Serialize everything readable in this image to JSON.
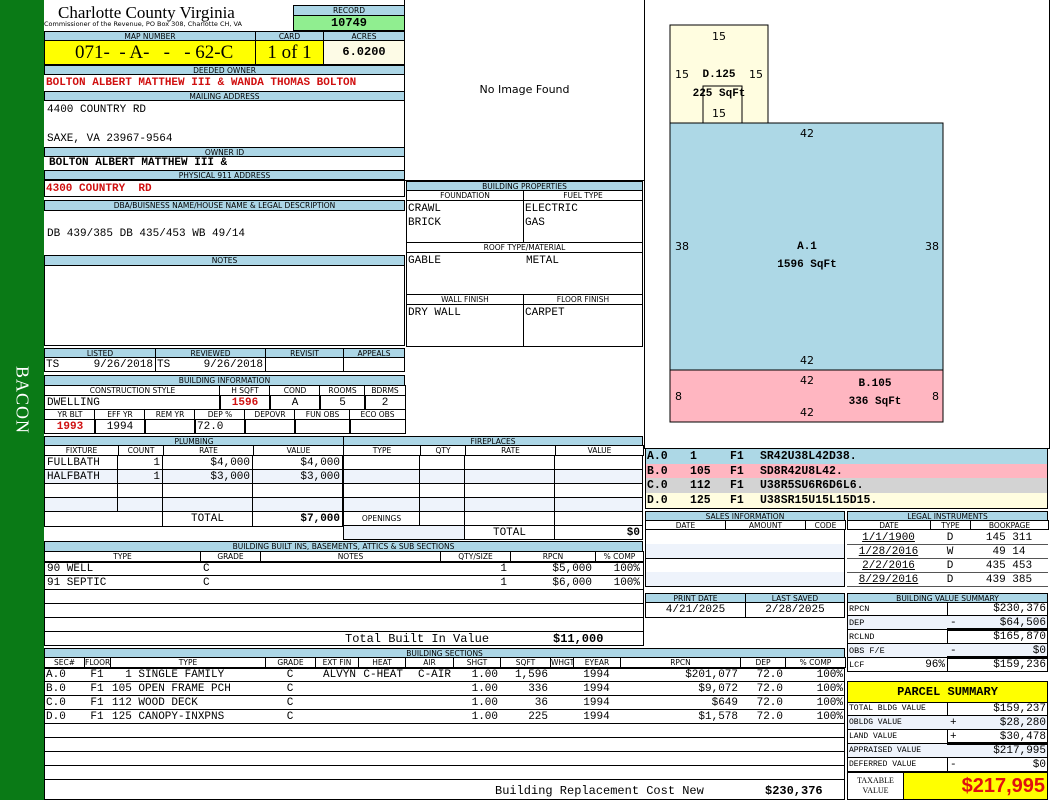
{
  "sidebar": {
    "name": "BACON"
  },
  "header": {
    "county": "Charlotte County Virginia",
    "office": "Commissioner of the Revenue, PO Box 308, Charlotte CH, VA",
    "record_label": "RECORD",
    "record": "10749"
  },
  "parcel": {
    "map_label": "MAP NUMBER",
    "map": "071-  - A-   -   - 62-C",
    "card_label": "CARD",
    "card": "1 of 1",
    "acres_label": "ACRES",
    "acres": "6.0200"
  },
  "owner": {
    "deeded_label": "DEEDED OWNER",
    "deeded": "BOLTON ALBERT MATTHEW III & WANDA THOMAS BOLTON",
    "mailing_label": "MAILING ADDRESS",
    "mail1": "4400 COUNTRY RD",
    "mail2": "SAXE, VA 23967-9564",
    "id_label": "OWNER ID",
    "id": "BOLTON ALBERT MATTHEW III &",
    "phys_label": "PHYSICAL 911 ADDRESS",
    "phys": "4300 COUNTRY  RD",
    "dba_label": "DBA/BUISNESS NAME/HOUSE NAME & LEGAL DESCRIPTION",
    "legal": "DB 439/385 DB 435/453 WB 49/14",
    "notes_label": "NOTES"
  },
  "image": {
    "text": "No Image Found"
  },
  "props": {
    "title": "BUILDING PROPERTIES",
    "foundation_label": "FOUNDATION",
    "fuel_label": "FUEL TYPE",
    "foundation": [
      "CRAWL",
      "BRICK"
    ],
    "fuel": [
      "ELECTRIC",
      "GAS"
    ],
    "roof_label": "ROOF TYPE/MATERIAL",
    "roof_type": "GABLE",
    "roof_material": "METAL",
    "wall_label": "WALL FINISH",
    "floor_label": "FLOOR FINISH",
    "wall": "DRY WALL",
    "floor": "CARPET"
  },
  "review": {
    "listed_label": "LISTED",
    "reviewed_label": "REVIEWED",
    "revisit_label": "REVISIT",
    "appeals_label": "APPEALS",
    "listed_by": "TS",
    "listed": "9/26/2018",
    "reviewed_by": "TS",
    "reviewed": "9/26/2018"
  },
  "bldg": {
    "title": "BUILDING INFORMATION",
    "style_label": "CONSTRUCTION STYLE",
    "hsqft_label": "H SQFT",
    "cond_label": "COND",
    "rooms_label": "ROOMS",
    "bdrms_label": "BDRMS",
    "style": "DWELLING",
    "hsqft": "1596",
    "cond": "A",
    "rooms": "5",
    "bdrms": "2",
    "yrblt_label": "YR BLT",
    "effyr_label": "EFF YR",
    "remyr_label": "REM YR",
    "dep_label": "DEP %",
    "depovr_label": "DEPOVR",
    "funobs_label": "FUN OBS",
    "ecoobs_label": "ECO OBS",
    "yrblt": "1993",
    "effyr": "1994",
    "dep": "72.0"
  },
  "plumbing": {
    "title": "PLUMBING",
    "cols": [
      "FIXTURE",
      "COUNT",
      "RATE",
      "VALUE"
    ],
    "rows": [
      [
        "FULLBATH",
        "1",
        "$4,000",
        "$4,000"
      ],
      [
        "HALFBATH",
        "1",
        "$3,000",
        "$3,000"
      ],
      [
        "",
        "",
        "",
        ""
      ],
      [
        "",
        "",
        "",
        ""
      ]
    ],
    "total_label": "TOTAL",
    "total": "$7,000"
  },
  "fireplaces": {
    "title": "FIREPLACES",
    "cols": [
      "TYPE",
      "QTY",
      "RATE",
      "VALUE"
    ],
    "rows": [
      [
        "",
        "",
        "",
        ""
      ],
      [
        "",
        "",
        "",
        ""
      ],
      [
        "",
        "",
        "",
        ""
      ],
      [
        "",
        "",
        "",
        ""
      ]
    ],
    "openings_label": "OPENINGS",
    "total_label": "TOTAL",
    "total": "$0"
  },
  "builtins": {
    "title": "BUILDING BUILT INS, BASEMENTS, ATTICS & SUB SECTIONS",
    "cols": [
      "TYPE",
      "GRADE",
      "NOTES",
      "QTY/SIZE",
      "RPCN",
      "% COMP"
    ],
    "rows": [
      [
        "90 WELL",
        "C",
        "",
        "1",
        "$5,000",
        "100%"
      ],
      [
        "91 SEPTIC",
        "C",
        "",
        "1",
        "$6,000",
        "100%"
      ],
      [
        "",
        "",
        "",
        "",
        "",
        ""
      ],
      [
        "",
        "",
        "",
        "",
        "",
        ""
      ],
      [
        "",
        "",
        "",
        "",
        "",
        ""
      ]
    ],
    "total_label": "Total Built In Value",
    "total": "$11,000"
  },
  "sections": {
    "title": "BUILDING SECTIONS",
    "cols": [
      "SEC#",
      "FLOOR",
      "TYPE",
      "GRADE",
      "EXT FIN",
      "HEAT",
      "AIR",
      "SHGT",
      "SQFT",
      "WHGT",
      "EYEAR",
      "RPCN",
      "DEP",
      "% COMP"
    ],
    "rows": [
      [
        "A.0",
        "F1",
        "  1 SINGLE FAMILY",
        "C",
        "ALVYN",
        "C-HEAT",
        "C-AIR",
        "1.00",
        "1,596",
        "",
        "1994",
        "$201,077",
        "72.0",
        "100%"
      ],
      [
        "B.0",
        "F1",
        "105 OPEN FRAME PCH",
        "C",
        "",
        "",
        "",
        "1.00",
        "336",
        "",
        "1994",
        "$9,072",
        "72.0",
        "100%"
      ],
      [
        "C.0",
        "F1",
        "112 WOOD DECK",
        "C",
        "",
        "",
        "",
        "1.00",
        "36",
        "",
        "1994",
        "$649",
        "72.0",
        "100%"
      ],
      [
        "D.0",
        "F1",
        "125 CANOPY-INXPNS",
        "C",
        "",
        "",
        "",
        "1.00",
        "225",
        "",
        "1994",
        "$1,578",
        "72.0",
        "100%"
      ],
      [
        "",
        "",
        "",
        "",
        "",
        "",
        "",
        "",
        "",
        "",
        "",
        "",
        "",
        ""
      ],
      [
        "",
        "",
        "",
        "",
        "",
        "",
        "",
        "",
        "",
        "",
        "",
        "",
        "",
        ""
      ],
      [
        "",
        "",
        "",
        "",
        "",
        "",
        "",
        "",
        "",
        "",
        "",
        "",
        "",
        ""
      ],
      [
        "",
        "",
        "",
        "",
        "",
        "",
        "",
        "",
        "",
        "",
        "",
        "",
        "",
        ""
      ]
    ],
    "total_label": "Building Replacement Cost New",
    "total": "$230,376"
  },
  "sketch": {
    "a_label": "A.1",
    "a_area": "1596 SqFt",
    "a_top": "42",
    "a_left": "38",
    "a_right": "38",
    "a_bottom": "42",
    "b_label": "B.105",
    "b_area": "336 SqFt",
    "b_top": "42",
    "b_left": "8",
    "b_right": "8",
    "b_bottom": "42",
    "d_label": "D.125",
    "d_area": "225 SqFt",
    "d_top": "15",
    "d_left": "15",
    "d_right": "15",
    "d_bottom": "15",
    "colors": {
      "A": "#add8e6",
      "B": "#ffb6c1",
      "C": "#d3d3d3",
      "D": "#fffde0"
    }
  },
  "sketch_codes": [
    [
      "A.0",
      "1",
      "F1",
      "SR42U38L42D38."
    ],
    [
      "B.0",
      "105",
      "F1",
      "SD8R42U8L42."
    ],
    [
      "C.0",
      "112",
      "F1",
      "U38R5SU6R6D6L6."
    ],
    [
      "D.0",
      "125",
      "F1",
      "U38SR15U15L15D15."
    ]
  ],
  "sales": {
    "title": "SALES INFORMATION",
    "cols": [
      "DATE",
      "AMOUNT",
      "CODE"
    ]
  },
  "legal": {
    "title": "LEGAL INSTRUMENTS",
    "cols": [
      "DATE",
      "TYPE",
      "BOOKPAGE"
    ],
    "rows": [
      [
        "1/1/1900",
        "D",
        "145 311"
      ],
      [
        "1/28/2016",
        "W",
        "49 14"
      ],
      [
        "2/2/2016",
        "D",
        "435 453"
      ],
      [
        "8/29/2016",
        "D",
        "439 385"
      ]
    ]
  },
  "dates": {
    "print_label": "PRINT DATE",
    "print": "4/21/2025",
    "saved_label": "LAST SAVED",
    "saved": "2/28/2025"
  },
  "bvs": {
    "title": "BUILDING VALUE SUMMARY",
    "rows": [
      [
        "RPCN",
        "",
        "",
        "$230,376"
      ],
      [
        "DEP",
        "",
        "-",
        "$64,506"
      ],
      [
        "RCLND",
        "",
        "",
        "$165,870"
      ],
      [
        "OBS F/E",
        "",
        "-",
        "$0"
      ],
      [
        "LCF",
        "96%",
        "",
        "$159,236"
      ]
    ]
  },
  "summary": {
    "title": "PARCEL SUMMARY",
    "rows": [
      [
        "TOTAL BLDG VALUE",
        "",
        "$159,237"
      ],
      [
        "OBLDG VALUE",
        "+",
        "$28,280"
      ],
      [
        "LAND VALUE",
        "+",
        "$30,478"
      ],
      [
        "APPRAISED VALUE",
        "",
        "$217,995"
      ],
      [
        "DEFERRED VALUE",
        "-",
        "$0"
      ]
    ],
    "taxable_label": "TAXABLE VALUE",
    "taxable": "$217,995"
  }
}
